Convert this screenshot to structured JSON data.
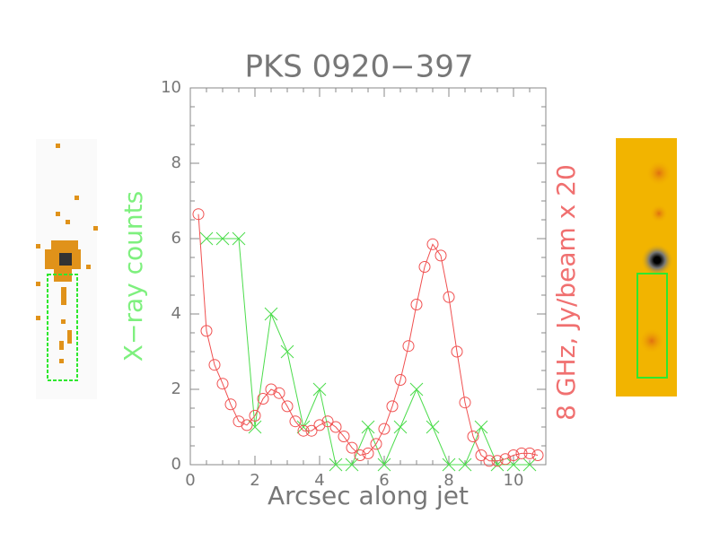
{
  "chart_data": {
    "type": "line",
    "title": "PKS 0920−397",
    "xlabel": "Arcsec along jet",
    "ylabel": "X−ray counts",
    "y2label": "8 GHz, Jy/beam x 20",
    "xlim": [
      0,
      11
    ],
    "xticks": [
      0,
      2,
      4,
      6,
      8,
      10
    ],
    "ylim": [
      0,
      10
    ],
    "yticks": [
      0,
      2,
      4,
      6,
      8,
      10
    ],
    "series": [
      {
        "name": "X−ray counts",
        "color": "#4cdc4c",
        "marker": "x",
        "x": [
          0.5,
          1.0,
          1.5,
          2.0,
          2.5,
          3.0,
          3.5,
          4.0,
          4.5,
          5.0,
          5.5,
          6.0,
          6.5,
          7.0,
          7.5,
          8.0,
          8.5,
          9.0,
          9.5,
          10.0,
          10.5
        ],
        "values": [
          6,
          6,
          6,
          1,
          4,
          3,
          1,
          2,
          0,
          0,
          1,
          0,
          1,
          2,
          1,
          0,
          0,
          1,
          0,
          0,
          0
        ]
      },
      {
        "name": "8 GHz, Jy/beam x 20",
        "color": "#f05050",
        "marker": "o",
        "x": [
          0.25,
          0.5,
          0.75,
          1.0,
          1.25,
          1.5,
          1.75,
          2.0,
          2.25,
          2.5,
          2.75,
          3.0,
          3.25,
          3.5,
          3.75,
          4.0,
          4.25,
          4.5,
          4.75,
          5.0,
          5.25,
          5.5,
          5.75,
          6.0,
          6.25,
          6.5,
          6.75,
          7.0,
          7.25,
          7.5,
          7.75,
          8.0,
          8.25,
          8.5,
          8.75,
          9.0,
          9.25,
          9.5,
          9.75,
          10.0,
          10.25,
          10.5,
          10.75
        ],
        "values": [
          6.65,
          3.55,
          2.65,
          2.15,
          1.6,
          1.15,
          1.05,
          1.3,
          1.75,
          2.0,
          1.9,
          1.55,
          1.15,
          0.9,
          0.9,
          1.05,
          1.15,
          1.0,
          0.75,
          0.45,
          0.25,
          0.3,
          0.55,
          0.95,
          1.55,
          2.25,
          3.15,
          4.25,
          5.25,
          5.85,
          5.55,
          4.45,
          3.0,
          1.65,
          0.75,
          0.25,
          0.1,
          0.1,
          0.15,
          0.25,
          0.3,
          0.3,
          0.25
        ]
      }
    ]
  }
}
